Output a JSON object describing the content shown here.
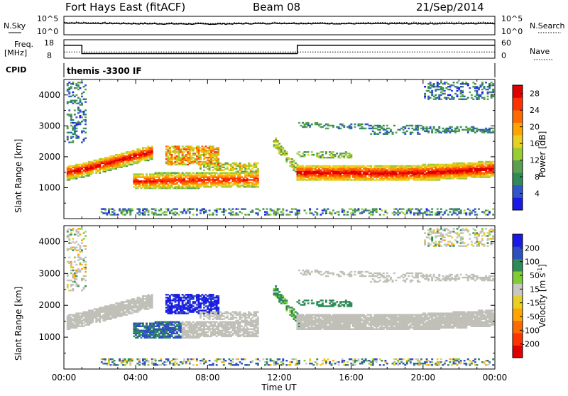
{
  "header": {
    "radar": "Fort Hays East (fitACF)",
    "beam": "Beam 08",
    "date": "21/Sep/2014"
  },
  "noise_panel": {
    "left_label": "N.Sky",
    "left_ticks": [
      "10^5",
      "10^0"
    ],
    "right_label": "N.Search",
    "right_ticks": [
      "10^5",
      "10^0"
    ]
  },
  "freq_panel": {
    "left_label_1": "Freq.",
    "left_label_2": "[MHz]",
    "left_ticks": [
      "18",
      "8"
    ],
    "right_label": "Nave",
    "right_ticks": [
      "60",
      "0"
    ]
  },
  "cpid_panel": {
    "label": "CPID",
    "value": "themis -3300 IF"
  },
  "colors": {
    "power": [
      "#1a1ae6",
      "#3355cc",
      "#2e8b57",
      "#5aa050",
      "#9acd32",
      "#e8d020",
      "#ffa500",
      "#ff6a00",
      "#ff3300",
      "#e00000"
    ],
    "velocity": [
      "#1a1ae6",
      "#2e4fbf",
      "#2e8b57",
      "#7fcd32",
      "#c8c8c0",
      "#e8d020",
      "#ffa500",
      "#ff6a00",
      "#ff3300",
      "#e00000"
    ],
    "ground_scatter": "#c0c0b8"
  },
  "chart_data": [
    {
      "type": "line",
      "panel": "noise",
      "title": "",
      "x": [
        "00:00",
        "04:00",
        "08:00",
        "12:00",
        "16:00",
        "20:00",
        "00:00"
      ],
      "series": [
        {
          "name": "N.Sky",
          "values": [
            3.2,
            3.0,
            2.9,
            3.1,
            3.0,
            3.0,
            3.1
          ]
        },
        {
          "name": "N.Search",
          "values": [
            3.4,
            3.2,
            3.1,
            3.3,
            3.2,
            3.3,
            3.4
          ]
        }
      ],
      "ylim": [
        0,
        5
      ]
    },
    {
      "type": "line",
      "panel": "frequency",
      "title": "",
      "x_hours": [
        0,
        1.0,
        1.0,
        13.0,
        13.0,
        24
      ],
      "series": [
        {
          "name": "Freq.",
          "values": [
            15,
            15,
            10.5,
            10.5,
            15,
            15
          ]
        },
        {
          "name": "Nave",
          "values": [
            20,
            20,
            20,
            20,
            20,
            20
          ]
        }
      ],
      "ylim": [
        8,
        18
      ]
    },
    {
      "type": "heatmap",
      "panel": "power",
      "xlabel": "",
      "ylabel": "Slant Range [km]",
      "xlim_hours": [
        0,
        24
      ],
      "ylim": [
        0,
        4500
      ],
      "x_ticks": [
        "00:00",
        "04:00",
        "08:00",
        "12:00",
        "16:00",
        "20:00",
        "00:00"
      ],
      "y_ticks": [
        1000,
        2000,
        3000,
        4000
      ],
      "colorbar_label": "Power [dB]",
      "colorbar_ticks": [
        28,
        24,
        20,
        16,
        12,
        8,
        4
      ],
      "colorbar_range": [
        0,
        30
      ]
    },
    {
      "type": "heatmap",
      "panel": "velocity",
      "xlabel": "Time UT",
      "ylabel": "Slant Range [km]",
      "xlim_hours": [
        0,
        24
      ],
      "ylim": [
        0,
        4500
      ],
      "x_ticks": [
        "00:00",
        "04:00",
        "08:00",
        "12:00",
        "16:00",
        "20:00",
        "00:00"
      ],
      "y_ticks": [
        1000,
        2000,
        3000,
        4000
      ],
      "colorbar_label": "Velocity [m s^-1]",
      "colorbar_ticks": [
        200,
        100,
        50,
        15,
        -15,
        -50,
        -100,
        -200
      ],
      "colorbar_range": [
        -250,
        250
      ]
    }
  ]
}
